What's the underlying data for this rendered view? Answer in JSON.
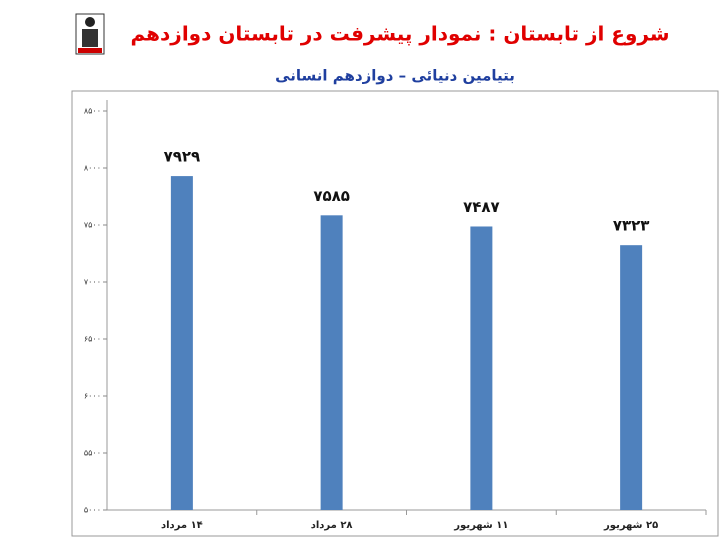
{
  "chart_data": {
    "type": "bar",
    "title": "شروع از تابستان : نمودار پیشرفت در تابستان دوازدهم",
    "subtitle": "بتیامین دنیائی – دوازدهم انسانی",
    "categories": [
      "۱۴ مرداد",
      "۲۸ مرداد",
      "۱۱ شهریور",
      "۲۵ شهریور"
    ],
    "values": [
      7929,
      7585,
      7487,
      7323
    ],
    "value_labels": [
      "۷۹۲۹",
      "۷۵۸۵",
      "۷۴۸۷",
      "۷۳۲۳"
    ],
    "color": "#4f81bd",
    "ylim": [
      5000,
      8500
    ],
    "yticks": [
      {
        "value": 5000,
        "label": "۵۰۰۰"
      },
      {
        "value": 5500,
        "label": "۵۵۰۰"
      },
      {
        "value": 6000,
        "label": "۶۰۰۰"
      },
      {
        "value": 6500,
        "label": "۶۵۰۰"
      },
      {
        "value": 7000,
        "label": "۷۰۰۰"
      },
      {
        "value": 7500,
        "label": "۷۵۰۰"
      },
      {
        "value": 8000,
        "label": "۸۰۰۰"
      },
      {
        "value": 8500,
        "label": "۸۵۰۰"
      }
    ],
    "grid": false
  }
}
